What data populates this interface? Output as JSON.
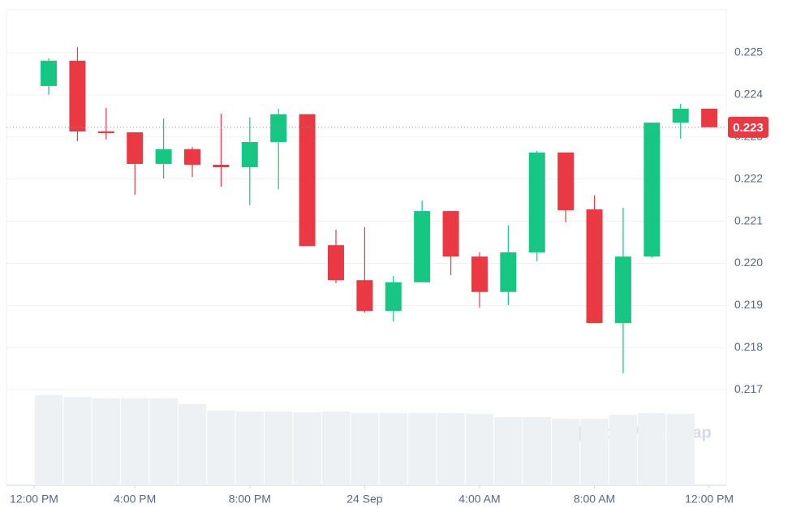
{
  "chart_data": {
    "type": "candlestick",
    "watermark": "CoinMarketCap",
    "x": [
      0,
      1,
      2,
      3,
      4,
      5,
      6,
      7,
      8,
      9,
      10,
      11,
      12,
      13,
      14,
      15,
      16,
      17,
      18,
      19,
      20,
      21,
      22,
      23
    ],
    "xlim": [
      -1.47,
      23.59
    ],
    "xticks": [
      {
        "value": -1,
        "label": "12:00 PM"
      },
      {
        "value": 3,
        "label": "4:00 PM"
      },
      {
        "value": 7,
        "label": "8:00 PM"
      },
      {
        "value": 11,
        "label": "24 Sep"
      },
      {
        "value": 15,
        "label": "4:00 AM"
      },
      {
        "value": 19,
        "label": "8:00 AM"
      },
      {
        "value": 23,
        "label": "12:00 PM"
      }
    ],
    "open": [
      0.22421,
      0.22481,
      0.22313,
      0.22311,
      0.22236,
      0.22271,
      0.22234,
      0.22228,
      0.22288,
      0.22354,
      0.22043,
      0.2196,
      0.21887,
      0.21955,
      0.22124,
      0.22016,
      0.21932,
      0.22026,
      0.22263,
      0.22128,
      0.21858,
      0.22016,
      0.22334,
      0.22367
    ],
    "high": [
      0.22487,
      0.22513,
      0.22369,
      0.22311,
      0.22344,
      0.22276,
      0.22355,
      0.22346,
      0.22367,
      0.22354,
      0.2208,
      0.22086,
      0.2197,
      0.22149,
      0.22124,
      0.22026,
      0.2209,
      0.22267,
      0.22263,
      0.22161,
      0.22132,
      0.22334,
      0.22379,
      0.22367
    ],
    "low": [
      0.224,
      0.2229,
      0.22294,
      0.22163,
      0.22201,
      0.22205,
      0.22182,
      0.22138,
      0.22176,
      0.22041,
      0.21953,
      0.21883,
      0.21862,
      0.21955,
      0.21972,
      0.21895,
      0.21901,
      0.22005,
      0.22097,
      0.21858,
      0.21739,
      0.22013,
      0.22296,
      0.22323
    ],
    "close": [
      0.22481,
      0.22313,
      0.22309,
      0.22236,
      0.22271,
      0.22234,
      0.22228,
      0.22288,
      0.22354,
      0.22041,
      0.2196,
      0.21887,
      0.21955,
      0.22124,
      0.22016,
      0.21932,
      0.22026,
      0.22263,
      0.22126,
      0.21858,
      0.22016,
      0.22334,
      0.22367,
      0.22323
    ],
    "volume": [
      111,
      109,
      107,
      107,
      107,
      100,
      92,
      91,
      91,
      90,
      91,
      89,
      89,
      89,
      89,
      88,
      84,
      84,
      82,
      82,
      87,
      89,
      88,
      null
    ],
    "vlim": [
      0,
      586
    ],
    "up_color": "#16c784",
    "down_color": "#ea3943",
    "volume_color": "#eef1f4",
    "ylim": [
      0.21473,
      0.22602
    ],
    "yticks": [
      0.217,
      0.218,
      0.219,
      0.22,
      0.221,
      0.222,
      0.223,
      0.224,
      0.225
    ],
    "yticklabels": [
      "0.217",
      "0.218",
      "0.219",
      "0.220",
      "0.221",
      "0.222",
      "0.223",
      "0.224",
      "0.225"
    ],
    "current_price": {
      "value": 0.22323,
      "label": "0.223"
    },
    "grid": true
  }
}
